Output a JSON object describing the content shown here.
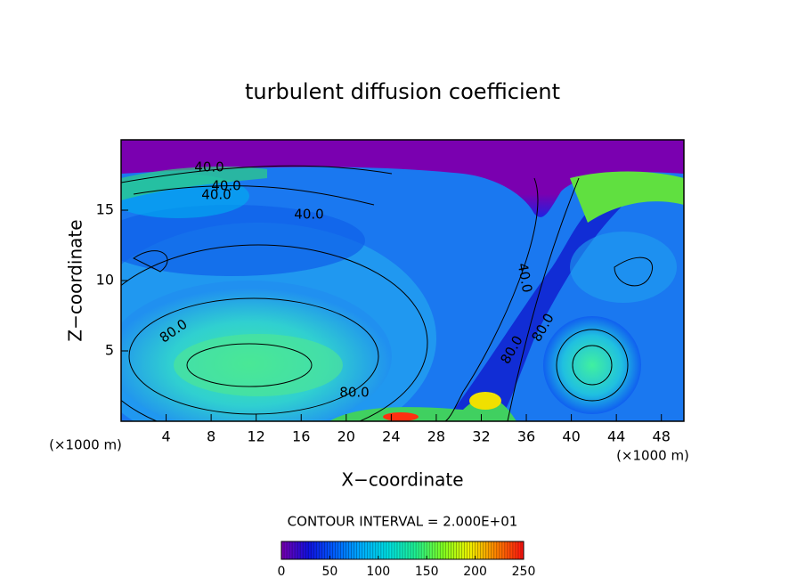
{
  "chart_data": {
    "type": "contour",
    "title": "turbulent diffusion coefficient",
    "xlabel": "X−coordinate",
    "ylabel": "Z−coordinate",
    "axis_unit": "(×1000 m)",
    "xlim": [
      0,
      50
    ],
    "xticks": [
      4,
      8,
      12,
      16,
      20,
      24,
      28,
      32,
      36,
      40,
      44,
      48
    ],
    "ylim": [
      0,
      20
    ],
    "yticks": [
      5,
      10,
      15
    ],
    "contour_interval_label": "CONTOUR INTERVAL = 2.000E+01",
    "contour_labels": [
      "40.0",
      "40.0",
      "40.0",
      "40.0",
      "80.0",
      "80.0",
      "40.0",
      "80.0",
      "80.0"
    ],
    "colorbar": {
      "clim": [
        0,
        250
      ],
      "ticks": [
        0,
        50,
        100,
        150,
        200,
        250
      ],
      "colormap": [
        "#7a00b0",
        "#1010e0",
        "#0060ff",
        "#00b0ff",
        "#00e0e0",
        "#20f090",
        "#80ff20",
        "#f0f000",
        "#ff8000",
        "#ff1010"
      ]
    }
  }
}
